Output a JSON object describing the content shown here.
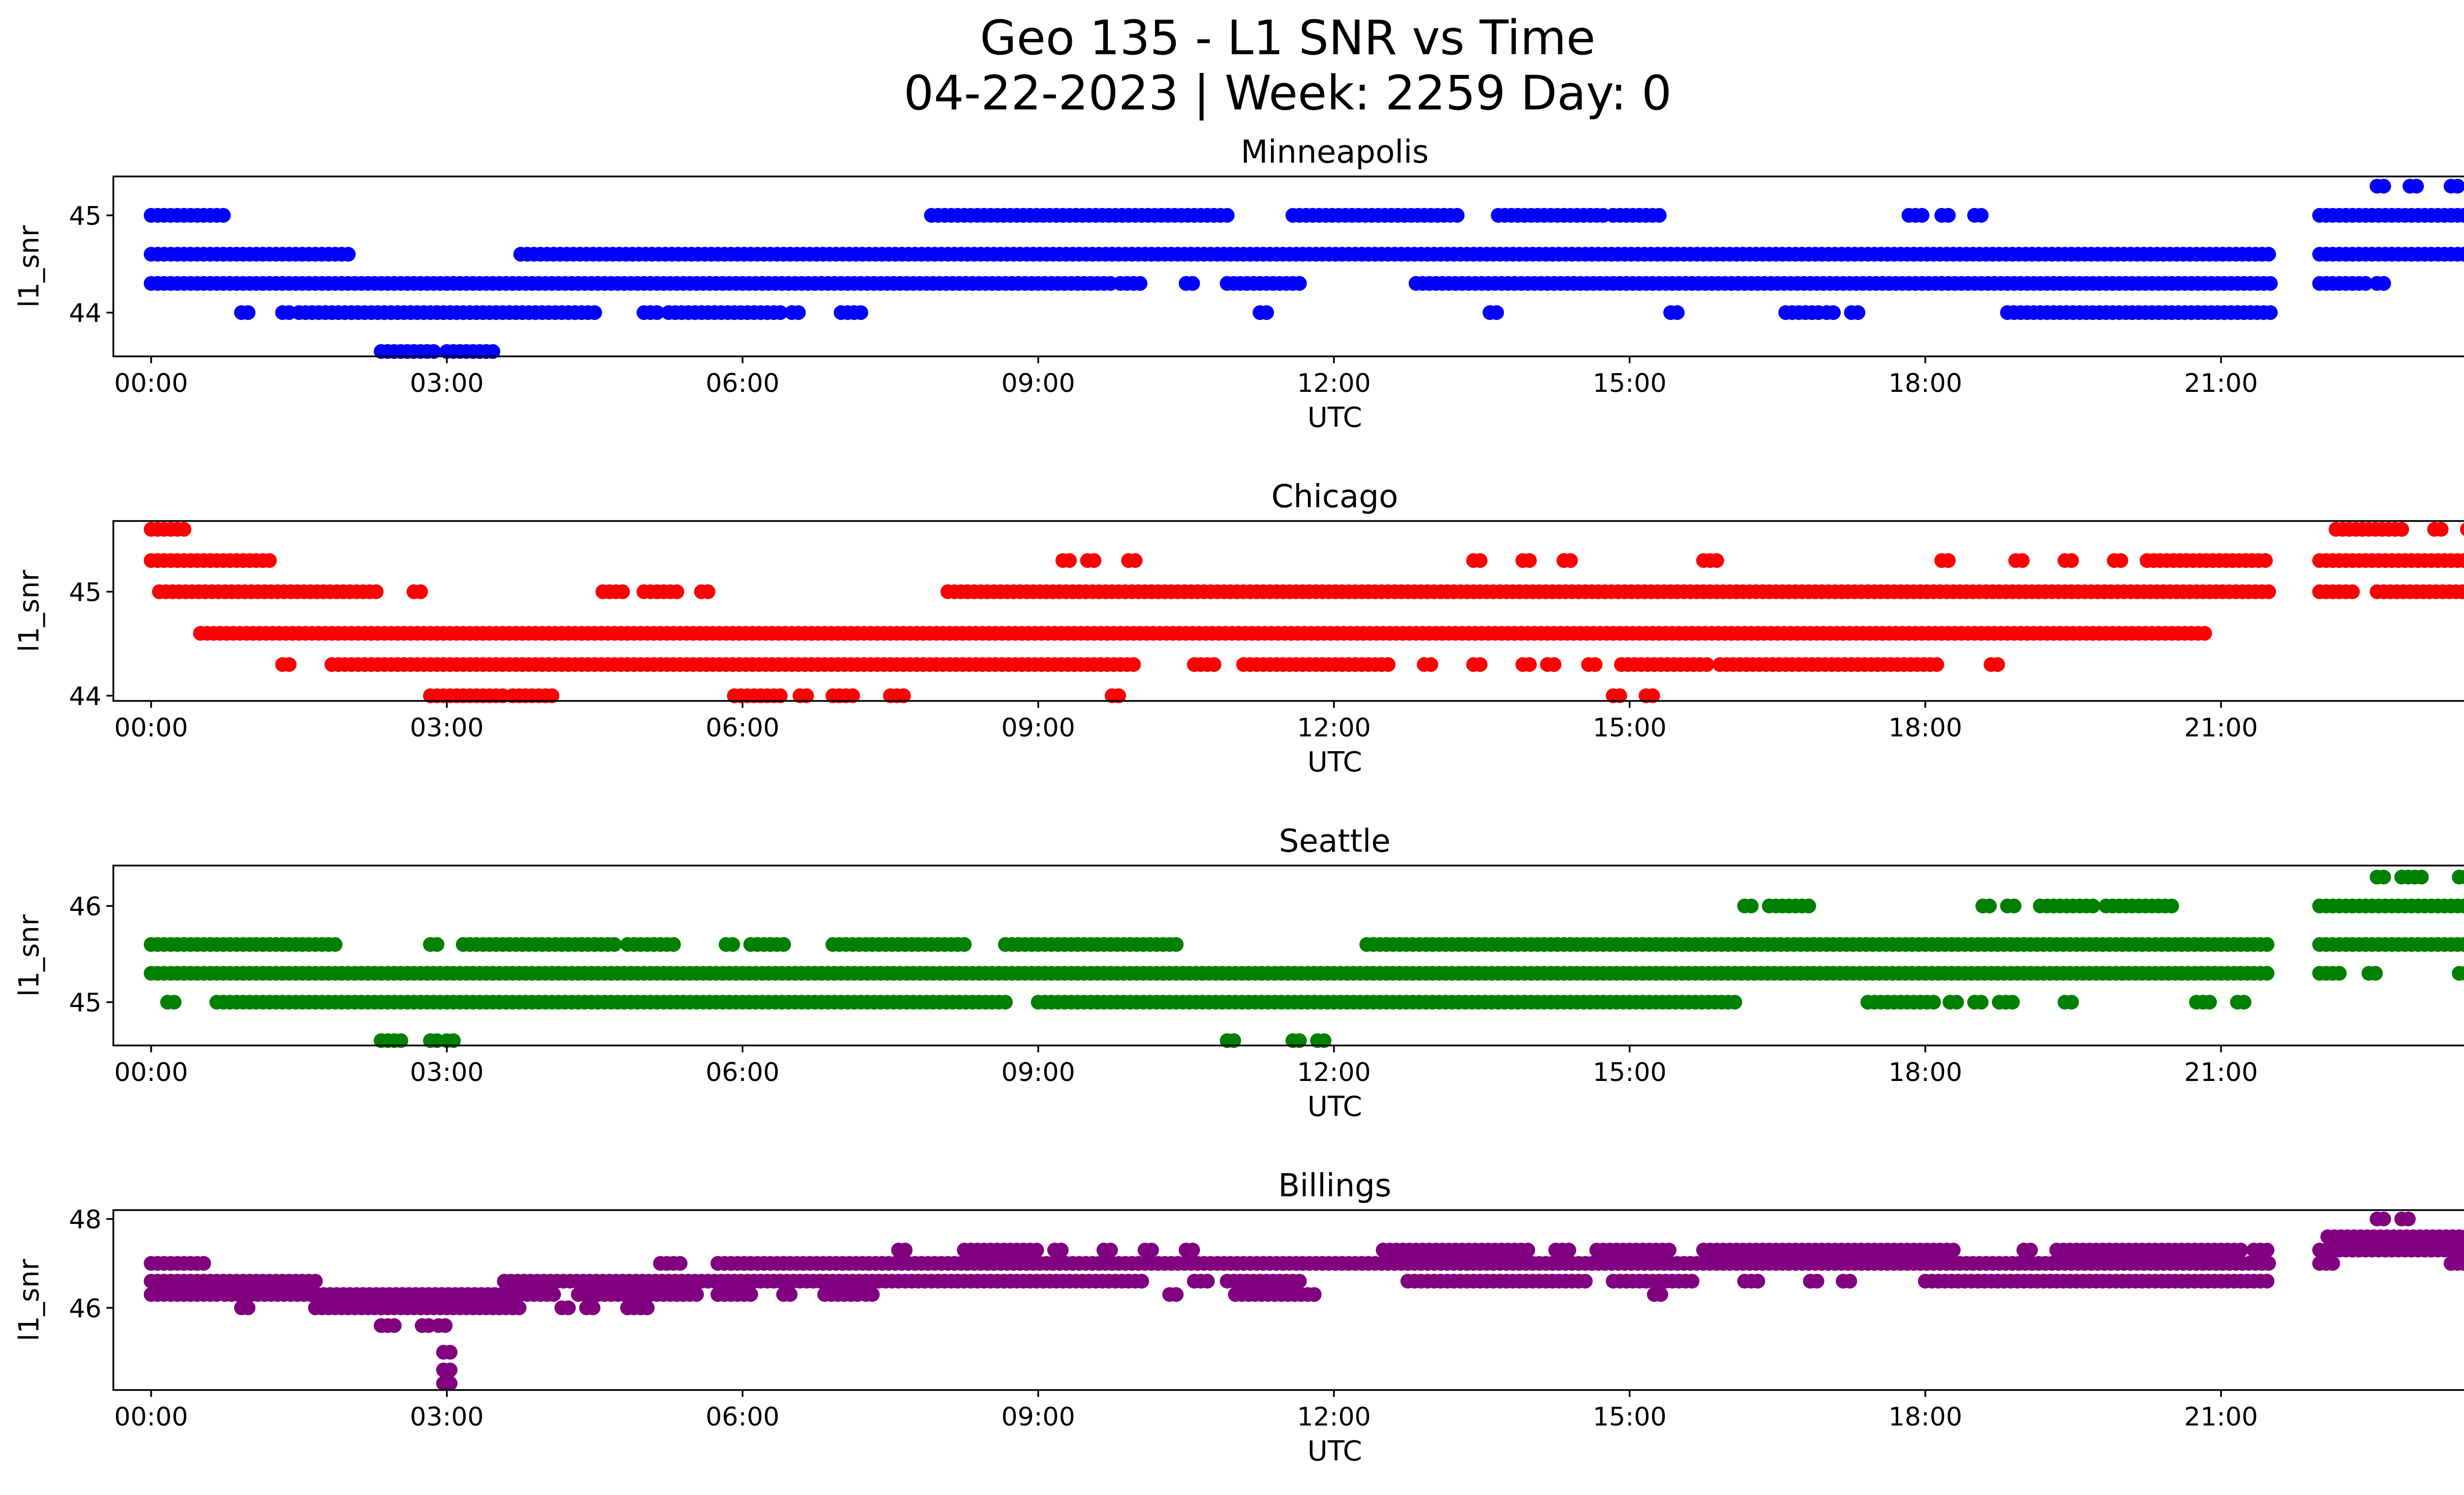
{
  "figure": {
    "title_line1": "Geo 135 - L1 SNR vs Time",
    "title_line2": "04-22-2023 | Week: 2259 Day: 0"
  },
  "chart_data": [
    {
      "type": "scatter",
      "title": "Minneapolis",
      "xlabel": "UTC",
      "ylabel": "l1_snr",
      "color": "#0000ff",
      "xlim": [
        "23:37",
        "24:24"
      ],
      "ylim": [
        43.55,
        45.4
      ],
      "x_ticks": [
        "00:00",
        "03:00",
        "06:00",
        "09:00",
        "12:00",
        "15:00",
        "18:00",
        "21:00",
        "00:00"
      ],
      "y_ticks": [
        44,
        45
      ],
      "grid": false,
      "legend": "none",
      "series_summary": [
        {
          "y": 45.3,
          "ranges": [
            [
              "22:35",
              "22:40"
            ],
            [
              "22:55",
              "23:00"
            ],
            [
              "23:20",
              "23:25"
            ],
            [
              "23:40",
              "24:00"
            ]
          ]
        },
        {
          "y": 45.0,
          "ranges": [
            [
              "00:00",
              "00:45"
            ],
            [
              "07:55",
              "10:55"
            ],
            [
              "11:35",
              "13:15"
            ],
            [
              "13:40",
              "14:45"
            ],
            [
              "14:50",
              "15:20"
            ],
            [
              "17:50",
              "18:00"
            ],
            [
              "18:10",
              "18:15"
            ],
            [
              "18:30",
              "18:35"
            ],
            [
              "22:00",
              "24:00"
            ]
          ]
        },
        {
          "y": 44.6,
          "ranges": [
            [
              "00:00",
              "02:00"
            ],
            [
              "03:45",
              "21:30"
            ],
            [
              "22:00",
              "24:00"
            ]
          ]
        },
        {
          "y": 44.3,
          "ranges": [
            [
              "00:00",
              "09:45"
            ],
            [
              "09:50",
              "10:05"
            ],
            [
              "10:30",
              "10:35"
            ],
            [
              "10:55",
              "11:40"
            ],
            [
              "12:50",
              "21:30"
            ],
            [
              "22:00",
              "22:30"
            ],
            [
              "22:35",
              "22:40"
            ]
          ]
        },
        {
          "y": 44.0,
          "ranges": [
            [
              "00:55",
              "01:00"
            ],
            [
              "01:20",
              "01:25"
            ],
            [
              "01:30",
              "04:30"
            ],
            [
              "05:00",
              "05:10"
            ],
            [
              "05:15",
              "06:25"
            ],
            [
              "06:30",
              "06:35"
            ],
            [
              "07:00",
              "07:15"
            ],
            [
              "11:15",
              "11:20"
            ],
            [
              "13:35",
              "13:40"
            ],
            [
              "15:25",
              "15:30"
            ],
            [
              "16:35",
              "16:55"
            ],
            [
              "17:00",
              "17:05"
            ],
            [
              "17:15",
              "17:20"
            ],
            [
              "18:50",
              "21:30"
            ]
          ]
        },
        {
          "y": 43.6,
          "ranges": [
            [
              "02:20",
              "02:55"
            ],
            [
              "03:00",
              "03:30"
            ]
          ]
        }
      ]
    },
    {
      "type": "scatter",
      "title": "Chicago",
      "xlabel": "UTC",
      "ylabel": "l1_snr",
      "color": "#ff0000",
      "xlim": [
        "23:37",
        "24:24"
      ],
      "ylim": [
        43.95,
        45.68
      ],
      "x_ticks": [
        "00:00",
        "03:00",
        "06:00",
        "09:00",
        "12:00",
        "15:00",
        "18:00",
        "21:00",
        "00:00"
      ],
      "y_ticks": [
        44,
        45
      ],
      "grid": false,
      "legend": "none",
      "series_summary": [
        {
          "y": 45.6,
          "ranges": [
            [
              "00:00",
              "00:20"
            ],
            [
              "22:10",
              "22:50"
            ],
            [
              "23:10",
              "23:15"
            ],
            [
              "23:30",
              "23:35"
            ]
          ]
        },
        {
          "y": 45.3,
          "ranges": [
            [
              "00:00",
              "01:15"
            ],
            [
              "09:15",
              "09:20"
            ],
            [
              "09:30",
              "09:35"
            ],
            [
              "09:55",
              "10:00"
            ],
            [
              "13:25",
              "13:30"
            ],
            [
              "13:55",
              "14:00"
            ],
            [
              "14:20",
              "14:25"
            ],
            [
              "15:45",
              "15:55"
            ],
            [
              "18:10",
              "18:15"
            ],
            [
              "18:55",
              "19:00"
            ],
            [
              "19:25",
              "19:30"
            ],
            [
              "19:55",
              "20:00"
            ],
            [
              "20:15",
              "21:30"
            ],
            [
              "22:00",
              "24:00"
            ]
          ]
        },
        {
          "y": 45.0,
          "ranges": [
            [
              "00:05",
              "02:20"
            ],
            [
              "02:40",
              "02:45"
            ],
            [
              "04:35",
              "04:50"
            ],
            [
              "05:00",
              "05:20"
            ],
            [
              "05:35",
              "05:40"
            ],
            [
              "08:05",
              "21:30"
            ],
            [
              "22:00",
              "22:20"
            ],
            [
              "22:35",
              "24:00"
            ]
          ]
        },
        {
          "y": 44.6,
          "ranges": [
            [
              "00:30",
              "20:50"
            ]
          ]
        },
        {
          "y": 44.3,
          "ranges": [
            [
              "01:20",
              "01:25"
            ],
            [
              "01:50",
              "10:00"
            ],
            [
              "10:35",
              "10:50"
            ],
            [
              "11:05",
              "12:35"
            ],
            [
              "12:55",
              "13:00"
            ],
            [
              "13:25",
              "13:30"
            ],
            [
              "13:55",
              "14:00"
            ],
            [
              "14:10",
              "14:15"
            ],
            [
              "14:35",
              "14:40"
            ],
            [
              "14:55",
              "15:50"
            ],
            [
              "15:55",
              "18:10"
            ],
            [
              "18:40",
              "18:45"
            ]
          ]
        },
        {
          "y": 44.0,
          "ranges": [
            [
              "02:50",
              "03:35"
            ],
            [
              "03:40",
              "04:05"
            ],
            [
              "05:55",
              "06:25"
            ],
            [
              "06:35",
              "06:40"
            ],
            [
              "06:55",
              "07:10"
            ],
            [
              "07:30",
              "07:40"
            ],
            [
              "09:45",
              "09:50"
            ],
            [
              "14:50",
              "14:55"
            ],
            [
              "15:10",
              "15:15"
            ]
          ]
        }
      ]
    },
    {
      "type": "scatter",
      "title": "Seattle",
      "xlabel": "UTC",
      "ylabel": "l1_snr",
      "color": "#008000",
      "xlim": [
        "23:37",
        "24:24"
      ],
      "ylim": [
        44.55,
        46.42
      ],
      "x_ticks": [
        "00:00",
        "03:00",
        "06:00",
        "09:00",
        "12:00",
        "15:00",
        "18:00",
        "21:00",
        "00:00"
      ],
      "y_ticks": [
        45,
        46
      ],
      "grid": false,
      "legend": "none",
      "series_summary": [
        {
          "y": 46.3,
          "ranges": [
            [
              "22:35",
              "22:40"
            ],
            [
              "22:50",
              "23:05"
            ],
            [
              "23:25",
              "23:30"
            ]
          ]
        },
        {
          "y": 46.0,
          "ranges": [
            [
              "16:10",
              "16:15"
            ],
            [
              "16:25",
              "16:50"
            ],
            [
              "18:35",
              "18:40"
            ],
            [
              "18:50",
              "18:55"
            ],
            [
              "19:10",
              "19:45"
            ],
            [
              "19:50",
              "20:30"
            ],
            [
              "22:00",
              "24:00"
            ]
          ]
        },
        {
          "y": 45.6,
          "ranges": [
            [
              "00:00",
              "01:55"
            ],
            [
              "02:50",
              "02:55"
            ],
            [
              "03:10",
              "04:45"
            ],
            [
              "04:50",
              "05:20"
            ],
            [
              "05:50",
              "05:55"
            ],
            [
              "06:05",
              "06:25"
            ],
            [
              "06:55",
              "08:15"
            ],
            [
              "08:40",
              "10:25"
            ],
            [
              "12:20",
              "21:30"
            ],
            [
              "22:00",
              "24:00"
            ]
          ]
        },
        {
          "y": 45.3,
          "ranges": [
            [
              "00:00",
              "21:30"
            ],
            [
              "22:00",
              "22:15"
            ],
            [
              "22:30",
              "22:35"
            ],
            [
              "23:25",
              "23:30"
            ]
          ]
        },
        {
          "y": 45.0,
          "ranges": [
            [
              "00:10",
              "00:15"
            ],
            [
              "00:40",
              "08:40"
            ],
            [
              "09:00",
              "16:05"
            ],
            [
              "17:25",
              "18:05"
            ],
            [
              "18:15",
              "18:20"
            ],
            [
              "18:30",
              "18:35"
            ],
            [
              "18:45",
              "18:55"
            ],
            [
              "19:25",
              "19:30"
            ],
            [
              "20:45",
              "20:55"
            ],
            [
              "21:10",
              "21:15"
            ]
          ]
        },
        {
          "y": 44.6,
          "ranges": [
            [
              "02:20",
              "02:35"
            ],
            [
              "02:50",
              "02:55"
            ],
            [
              "03:00",
              "03:05"
            ],
            [
              "10:55",
              "11:00"
            ],
            [
              "11:35",
              "11:40"
            ],
            [
              "11:50",
              "11:55"
            ]
          ]
        }
      ]
    },
    {
      "type": "scatter",
      "title": "Billings",
      "xlabel": "UTC",
      "ylabel": "l1_snr",
      "color": "#800080",
      "xlim": [
        "23:37",
        "24:24"
      ],
      "ylim": [
        44.15,
        48.2
      ],
      "x_ticks": [
        "00:00",
        "03:00",
        "06:00",
        "09:00",
        "12:00",
        "15:00",
        "18:00",
        "21:00",
        "00:00"
      ],
      "y_ticks": [
        46,
        48
      ],
      "grid": false,
      "legend": "none",
      "series_summary": [
        {
          "y": 48.0,
          "ranges": [
            [
              "22:35",
              "22:40"
            ],
            [
              "22:50",
              "22:55"
            ]
          ]
        },
        {
          "y": 47.6,
          "ranges": [
            [
              "22:05",
              "24:00"
            ]
          ]
        },
        {
          "y": 47.3,
          "ranges": [
            [
              "07:35",
              "07:40"
            ],
            [
              "08:15",
              "09:00"
            ],
            [
              "09:10",
              "09:15"
            ],
            [
              "09:40",
              "09:45"
            ],
            [
              "10:05",
              "10:10"
            ],
            [
              "10:30",
              "10:35"
            ],
            [
              "12:30",
              "14:00"
            ],
            [
              "14:15",
              "14:25"
            ],
            [
              "14:40",
              "15:25"
            ],
            [
              "15:45",
              "18:20"
            ],
            [
              "19:00",
              "19:05"
            ],
            [
              "19:20",
              "21:15"
            ],
            [
              "21:20",
              "21:30"
            ],
            [
              "22:00",
              "24:00"
            ]
          ]
        },
        {
          "y": 47.0,
          "ranges": [
            [
              "00:00",
              "00:35"
            ],
            [
              "05:10",
              "05:25"
            ],
            [
              "05:45",
              "21:30"
            ],
            [
              "22:00",
              "22:10"
            ],
            [
              "23:20",
              "23:30"
            ],
            [
              "23:50",
              "24:00"
            ]
          ]
        },
        {
          "y": 46.6,
          "ranges": [
            [
              "00:00",
              "01:40"
            ],
            [
              "03:35",
              "10:05"
            ],
            [
              "10:35",
              "10:45"
            ],
            [
              "10:55",
              "11:40"
            ],
            [
              "12:45",
              "14:35"
            ],
            [
              "14:50",
              "15:40"
            ],
            [
              "16:10",
              "16:20"
            ],
            [
              "16:50",
              "16:55"
            ],
            [
              "17:10",
              "17:15"
            ],
            [
              "18:00",
              "21:30"
            ]
          ]
        },
        {
          "y": 46.3,
          "ranges": [
            [
              "00:00",
              "00:40"
            ],
            [
              "00:45",
              "04:05"
            ],
            [
              "04:20",
              "05:35"
            ],
            [
              "05:45",
              "06:05"
            ],
            [
              "06:25",
              "06:30"
            ],
            [
              "06:50",
              "07:10"
            ],
            [
              "07:15",
              "07:20"
            ],
            [
              "10:20",
              "10:25"
            ],
            [
              "11:00",
              "11:50"
            ],
            [
              "15:15",
              "15:20"
            ]
          ]
        },
        {
          "y": 46.0,
          "ranges": [
            [
              "00:55",
              "01:00"
            ],
            [
              "01:40",
              "03:45"
            ],
            [
              "04:10",
              "04:15"
            ],
            [
              "04:25",
              "04:30"
            ],
            [
              "04:50",
              "05:05"
            ]
          ]
        },
        {
          "y": 45.6,
          "ranges": [
            [
              "02:20",
              "02:30"
            ],
            [
              "02:45",
              "02:50"
            ],
            [
              "02:55",
              "03:00"
            ]
          ]
        },
        {
          "y": 45.0,
          "ranges": [
            [
              "02:58",
              "03:02"
            ]
          ]
        },
        {
          "y": 44.6,
          "ranges": [
            [
              "02:58",
              "03:02"
            ]
          ]
        },
        {
          "y": 44.3,
          "ranges": [
            [
              "02:58",
              "03:02"
            ]
          ]
        }
      ]
    }
  ]
}
